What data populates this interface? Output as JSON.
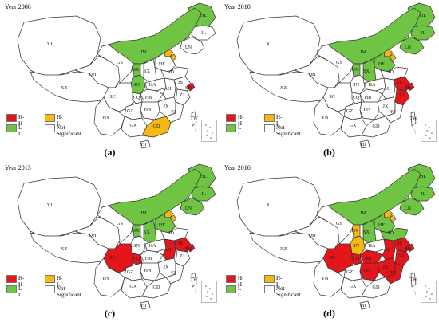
{
  "colors": {
    "H-H": "#e3161c",
    "H-L": "#f5b912",
    "L-L": "#6fc444",
    "Not Significant": "#ffffff",
    "border": "#333333"
  },
  "legend": [
    {
      "key": "H-H",
      "label": "H-H"
    },
    {
      "key": "H-L",
      "label": "H-L"
    },
    {
      "key": "L-L",
      "label": "L-L"
    },
    {
      "key": "Not Significant",
      "label": "Not Significant"
    }
  ],
  "provinces": [
    "HL",
    "JL",
    "LN",
    "IM",
    "BJ",
    "TJ",
    "HE",
    "SD",
    "SX",
    "SN",
    "NX",
    "GS",
    "QH",
    "XJ",
    "XZ",
    "SC",
    "CQ",
    "HA",
    "HB",
    "AH",
    "JS",
    "SH",
    "ZJ",
    "JX",
    "HN",
    "FJ",
    "GZ",
    "YN",
    "GX",
    "GD",
    "HI",
    "TW"
  ],
  "panels": [
    {
      "year": "Year 2008",
      "caption": "(a)",
      "classes": {
        "IM": "L-L",
        "HL": "L-L",
        "NX": "L-L",
        "SN": "L-L",
        "BJ": "H-L",
        "TJ": "H-L",
        "SH": "H-H",
        "GD": "H-L"
      }
    },
    {
      "year": "Year 2010",
      "caption": "(b)",
      "classes": {
        "IM": "L-L",
        "HL": "L-L",
        "JL": "L-L",
        "LN": "L-L",
        "NX": "L-L",
        "SX": "L-L",
        "HE": "L-L",
        "BJ": "H-L",
        "TJ": "H-L",
        "JS": "H-H",
        "SH": "H-H",
        "ZJ": "H-H"
      }
    },
    {
      "year": "Year 2013",
      "caption": "(c)",
      "classes": {
        "IM": "L-L",
        "HL": "L-L",
        "JL": "L-L",
        "LN": "L-L",
        "NX": "L-L",
        "SX": "L-L",
        "HE": "L-L",
        "BJ": "H-L",
        "TJ": "H-L",
        "SC": "H-H",
        "CQ": "H-H",
        "JS": "H-H",
        "SH": "H-H",
        "AH": "H-H"
      }
    },
    {
      "year": "Year 2016",
      "caption": "(d)",
      "classes": {
        "IM": "L-L",
        "HL": "L-L",
        "JL": "L-L",
        "LN": "L-L",
        "SX": "L-L",
        "HE": "L-L",
        "SD": "L-L",
        "BJ": "H-L",
        "TJ": "H-L",
        "NX": "H-L",
        "SN": "H-L",
        "SC": "H-H",
        "CQ": "H-H",
        "JS": "H-H",
        "SH": "H-H",
        "AH": "H-H",
        "ZJ": "H-H",
        "JX": "H-H",
        "HN": "H-H",
        "FJ": "H-H",
        "HB": "H-H"
      }
    }
  ]
}
